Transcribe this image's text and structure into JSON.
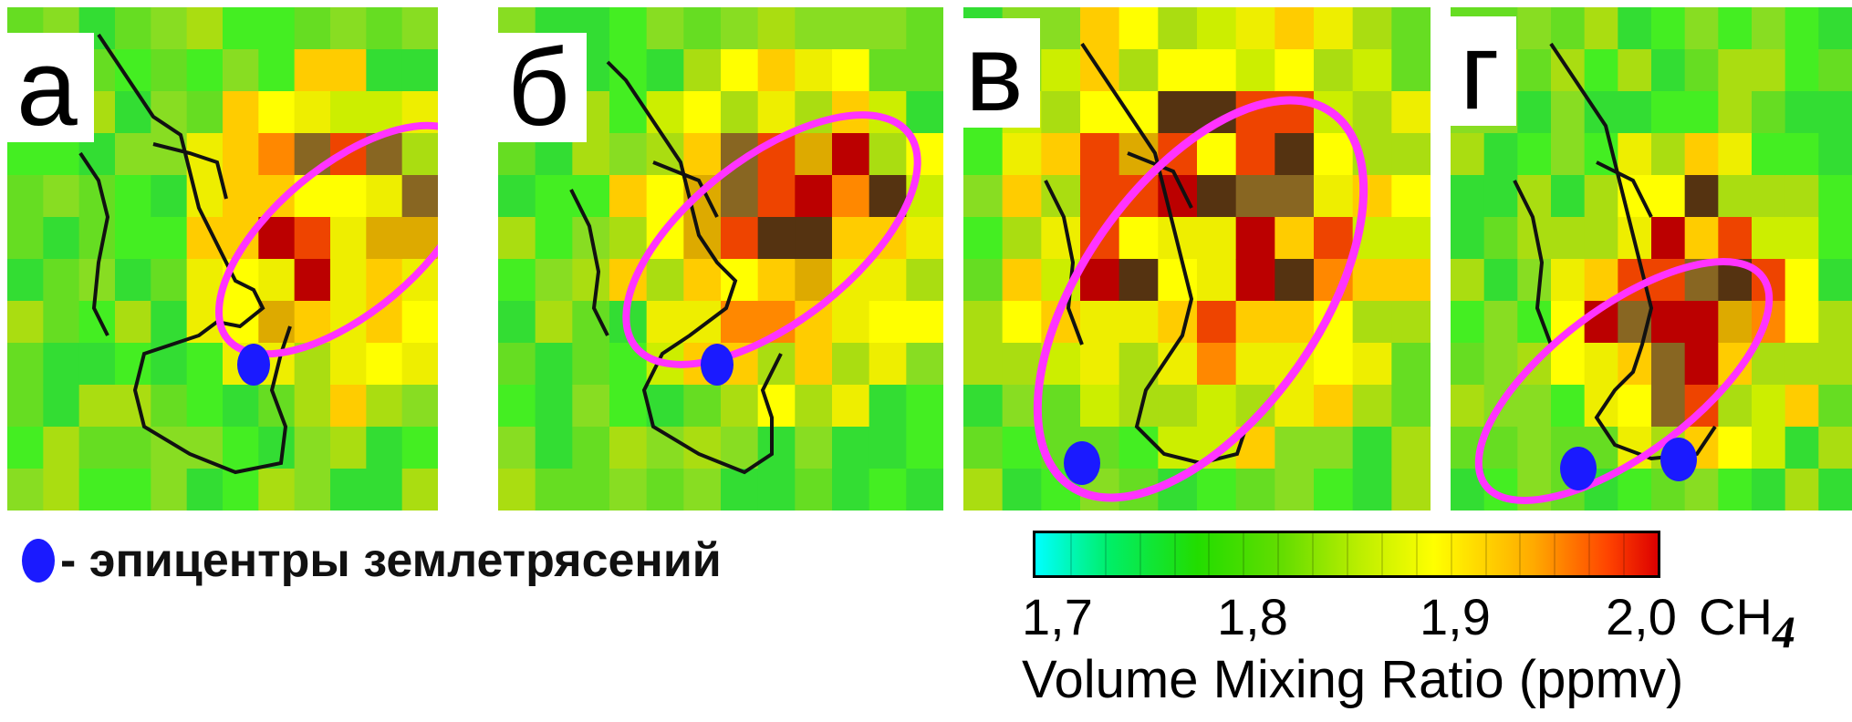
{
  "panels": [
    {
      "label": "а",
      "epicenters": 1
    },
    {
      "label": "б",
      "epicenters": 1
    },
    {
      "label": "в",
      "epicenters": 1
    },
    {
      "label": "г",
      "epicenters": 2
    }
  ],
  "legend": {
    "marker_color": "#1a1aff",
    "text": "- эпицентры землетрясений"
  },
  "colorbar": {
    "ticks": [
      "1,7",
      "1,8",
      "1,9",
      "2,0"
    ],
    "tick_values": [
      1.7,
      1.8,
      1.9,
      2.0
    ],
    "species": "CH",
    "species_subscript": "4",
    "title": "Volume Mixing Ratio (ppmv)",
    "range": [
      1.7,
      2.0
    ],
    "colors": [
      "#00ffff",
      "#00ee66",
      "#22dd00",
      "#66dd00",
      "#bbee00",
      "#ffff00",
      "#ffaa00",
      "#ff4400",
      "#dd0000"
    ]
  },
  "colors": {
    "anomaly_ellipse": "#ff33ff",
    "coastline": "#111111"
  }
}
